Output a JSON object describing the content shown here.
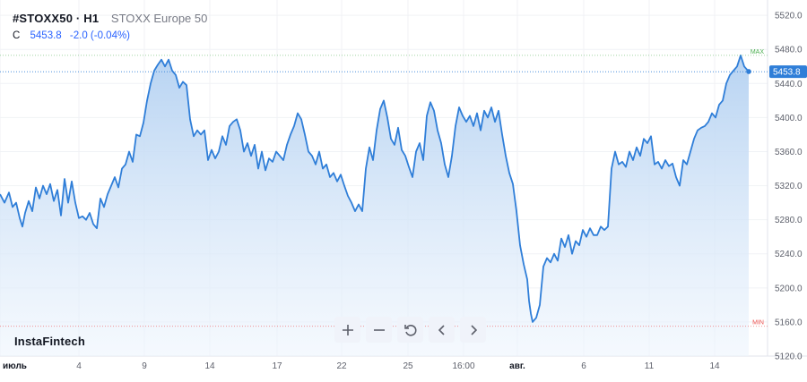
{
  "header": {
    "symbol": "#STOXX50 · H1",
    "name": "STOXX Europe 50",
    "close_label": "C",
    "close_value": "5453.8",
    "change": "-2.0 (-0.04%)"
  },
  "brand": "InstaFintech",
  "toolbar": [
    {
      "name": "zoom-in-button",
      "icon": "plus-icon"
    },
    {
      "name": "zoom-out-button",
      "icon": "minus-icon"
    },
    {
      "name": "reset-button",
      "icon": "reset-icon"
    },
    {
      "name": "scroll-left-button",
      "icon": "chevron-left-icon"
    },
    {
      "name": "scroll-right-button",
      "icon": "chevron-right-icon"
    }
  ],
  "colors": {
    "line": "#2f7ed8",
    "fill_top": "#b7d3f2",
    "fill_bottom": "#eef5fd",
    "max": "#4caf50",
    "min": "#ef5350",
    "grid": "#eef0f3"
  },
  "chart_data": {
    "type": "area",
    "y_ticks": [
      "5520.0",
      "5480.0",
      "5440.0",
      "5400.0",
      "5360.0",
      "5320.0",
      "5280.0",
      "5240.0",
      "5200.0",
      "5160.0",
      "5120.0"
    ],
    "ylim": [
      5120,
      5538
    ],
    "x_tick_labels": [
      {
        "label": "июль",
        "pos": 0,
        "bold": true
      },
      {
        "label": "4",
        "pos": 88
      },
      {
        "label": "9",
        "pos": 161
      },
      {
        "label": "14",
        "pos": 234
      },
      {
        "label": "17",
        "pos": 309
      },
      {
        "label": "22",
        "pos": 381
      },
      {
        "label": "25",
        "pos": 455
      },
      {
        "label": "16:00",
        "pos": 517
      },
      {
        "label": "авг.",
        "pos": 577,
        "bold": true
      },
      {
        "label": "6",
        "pos": 651
      },
      {
        "label": "11",
        "pos": 724
      },
      {
        "label": "14",
        "pos": 797
      }
    ],
    "xlim": [
      0,
      835
    ],
    "max_label": "MAX",
    "min_label": "MIN",
    "max_value": 5473,
    "min_value": 5155,
    "last_price": 5453.8,
    "last_price_label": "5453.8",
    "points": [
      [
        0,
        5310
      ],
      [
        5,
        5300
      ],
      [
        10,
        5312
      ],
      [
        14,
        5295
      ],
      [
        18,
        5300
      ],
      [
        22,
        5282
      ],
      [
        25,
        5272
      ],
      [
        28,
        5288
      ],
      [
        32,
        5302
      ],
      [
        36,
        5290
      ],
      [
        40,
        5318
      ],
      [
        44,
        5305
      ],
      [
        48,
        5320
      ],
      [
        52,
        5310
      ],
      [
        56,
        5322
      ],
      [
        60,
        5302
      ],
      [
        64,
        5315
      ],
      [
        68,
        5285
      ],
      [
        72,
        5328
      ],
      [
        76,
        5300
      ],
      [
        80,
        5325
      ],
      [
        84,
        5300
      ],
      [
        88,
        5282
      ],
      [
        92,
        5284
      ],
      [
        96,
        5280
      ],
      [
        100,
        5288
      ],
      [
        104,
        5275
      ],
      [
        108,
        5270
      ],
      [
        112,
        5305
      ],
      [
        116,
        5295
      ],
      [
        120,
        5310
      ],
      [
        124,
        5320
      ],
      [
        128,
        5330
      ],
      [
        132,
        5318
      ],
      [
        136,
        5340
      ],
      [
        140,
        5345
      ],
      [
        144,
        5360
      ],
      [
        148,
        5348
      ],
      [
        152,
        5380
      ],
      [
        156,
        5378
      ],
      [
        160,
        5394
      ],
      [
        164,
        5420
      ],
      [
        168,
        5440
      ],
      [
        172,
        5455
      ],
      [
        176,
        5462
      ],
      [
        180,
        5468
      ],
      [
        184,
        5460
      ],
      [
        188,
        5468
      ],
      [
        192,
        5455
      ],
      [
        196,
        5450
      ],
      [
        200,
        5435
      ],
      [
        204,
        5442
      ],
      [
        208,
        5438
      ],
      [
        212,
        5398
      ],
      [
        216,
        5378
      ],
      [
        220,
        5385
      ],
      [
        224,
        5380
      ],
      [
        228,
        5385
      ],
      [
        232,
        5350
      ],
      [
        236,
        5362
      ],
      [
        240,
        5352
      ],
      [
        244,
        5360
      ],
      [
        248,
        5378
      ],
      [
        252,
        5368
      ],
      [
        256,
        5390
      ],
      [
        260,
        5395
      ],
      [
        264,
        5398
      ],
      [
        268,
        5385
      ],
      [
        272,
        5360
      ],
      [
        276,
        5370
      ],
      [
        280,
        5355
      ],
      [
        284,
        5368
      ],
      [
        288,
        5340
      ],
      [
        292,
        5360
      ],
      [
        296,
        5338
      ],
      [
        300,
        5352
      ],
      [
        304,
        5348
      ],
      [
        308,
        5360
      ],
      [
        312,
        5355
      ],
      [
        316,
        5350
      ],
      [
        320,
        5368
      ],
      [
        324,
        5380
      ],
      [
        328,
        5390
      ],
      [
        332,
        5405
      ],
      [
        336,
        5398
      ],
      [
        340,
        5380
      ],
      [
        344,
        5360
      ],
      [
        348,
        5355
      ],
      [
        352,
        5345
      ],
      [
        356,
        5360
      ],
      [
        360,
        5340
      ],
      [
        364,
        5345
      ],
      [
        368,
        5330
      ],
      [
        372,
        5335
      ],
      [
        376,
        5325
      ],
      [
        380,
        5333
      ],
      [
        384,
        5320
      ],
      [
        388,
        5308
      ],
      [
        392,
        5300
      ],
      [
        396,
        5290
      ],
      [
        400,
        5298
      ],
      [
        404,
        5290
      ],
      [
        408,
        5340
      ],
      [
        412,
        5365
      ],
      [
        416,
        5350
      ],
      [
        420,
        5385
      ],
      [
        424,
        5410
      ],
      [
        428,
        5420
      ],
      [
        432,
        5400
      ],
      [
        436,
        5375
      ],
      [
        440,
        5368
      ],
      [
        444,
        5388
      ],
      [
        448,
        5362
      ],
      [
        452,
        5355
      ],
      [
        456,
        5342
      ],
      [
        460,
        5330
      ],
      [
        464,
        5360
      ],
      [
        468,
        5370
      ],
      [
        472,
        5350
      ],
      [
        476,
        5402
      ],
      [
        480,
        5418
      ],
      [
        484,
        5408
      ],
      [
        488,
        5385
      ],
      [
        492,
        5370
      ],
      [
        496,
        5345
      ],
      [
        500,
        5330
      ],
      [
        504,
        5355
      ],
      [
        508,
        5390
      ],
      [
        512,
        5412
      ],
      [
        516,
        5402
      ],
      [
        520,
        5395
      ],
      [
        524,
        5402
      ],
      [
        528,
        5390
      ],
      [
        532,
        5405
      ],
      [
        536,
        5385
      ],
      [
        540,
        5408
      ],
      [
        544,
        5400
      ],
      [
        548,
        5412
      ],
      [
        552,
        5395
      ],
      [
        556,
        5408
      ],
      [
        560,
        5380
      ],
      [
        564,
        5355
      ],
      [
        568,
        5335
      ],
      [
        572,
        5322
      ],
      [
        576,
        5290
      ],
      [
        580,
        5250
      ],
      [
        584,
        5228
      ],
      [
        588,
        5210
      ],
      [
        590,
        5185
      ],
      [
        592,
        5170
      ],
      [
        594,
        5160
      ],
      [
        598,
        5165
      ],
      [
        602,
        5180
      ],
      [
        606,
        5225
      ],
      [
        610,
        5235
      ],
      [
        614,
        5230
      ],
      [
        618,
        5240
      ],
      [
        622,
        5232
      ],
      [
        626,
        5258
      ],
      [
        630,
        5248
      ],
      [
        634,
        5262
      ],
      [
        638,
        5240
      ],
      [
        642,
        5255
      ],
      [
        646,
        5250
      ],
      [
        650,
        5268
      ],
      [
        654,
        5260
      ],
      [
        658,
        5270
      ],
      [
        662,
        5262
      ],
      [
        666,
        5262
      ],
      [
        670,
        5272
      ],
      [
        674,
        5268
      ],
      [
        678,
        5272
      ],
      [
        682,
        5340
      ],
      [
        686,
        5360
      ],
      [
        690,
        5345
      ],
      [
        694,
        5348
      ],
      [
        698,
        5342
      ],
      [
        702,
        5360
      ],
      [
        706,
        5350
      ],
      [
        710,
        5365
      ],
      [
        714,
        5355
      ],
      [
        718,
        5375
      ],
      [
        722,
        5370
      ],
      [
        726,
        5378
      ],
      [
        730,
        5345
      ],
      [
        734,
        5348
      ],
      [
        738,
        5340
      ],
      [
        742,
        5350
      ],
      [
        746,
        5343
      ],
      [
        750,
        5346
      ],
      [
        754,
        5330
      ],
      [
        758,
        5320
      ],
      [
        762,
        5350
      ],
      [
        766,
        5345
      ],
      [
        770,
        5360
      ],
      [
        774,
        5375
      ],
      [
        778,
        5385
      ],
      [
        782,
        5388
      ],
      [
        786,
        5390
      ],
      [
        790,
        5395
      ],
      [
        794,
        5405
      ],
      [
        798,
        5400
      ],
      [
        802,
        5415
      ],
      [
        806,
        5420
      ],
      [
        810,
        5440
      ],
      [
        814,
        5450
      ],
      [
        818,
        5455
      ],
      [
        822,
        5460
      ],
      [
        826,
        5473
      ],
      [
        830,
        5460
      ],
      [
        835,
        5454
      ]
    ]
  }
}
